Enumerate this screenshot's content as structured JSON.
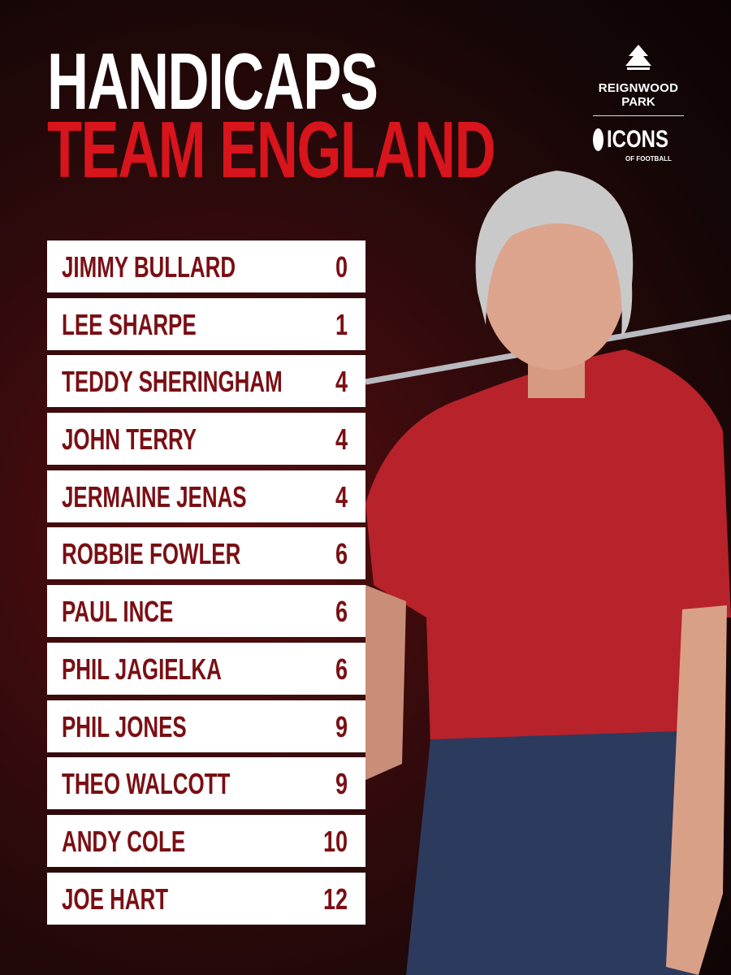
{
  "header": {
    "title": "HANDICAPS",
    "subtitle": "TEAM ENGLAND"
  },
  "logos": {
    "venue_line1": "REIGNWOOD",
    "venue_line2": "PARK",
    "brand": "ICONS",
    "brand_sub": "OF FOOTBALL"
  },
  "table": {
    "rows": [
      [
        "JIMMY BULLARD",
        0
      ],
      [
        "LEE SHARPE",
        1
      ],
      [
        "TEDDY SHERINGHAM",
        4
      ],
      [
        "JOHN TERRY",
        4
      ],
      [
        "JERMAINE JENAS",
        4
      ],
      [
        "ROBBIE FOWLER",
        6
      ],
      [
        "PAUL INCE",
        6
      ],
      [
        "PHIL JAGIELKA",
        6
      ],
      [
        "PHIL JONES",
        9
      ],
      [
        "THEO WALCOTT",
        9
      ],
      [
        "ANDY COLE",
        10
      ],
      [
        "JOE HART",
        12
      ]
    ]
  }
}
